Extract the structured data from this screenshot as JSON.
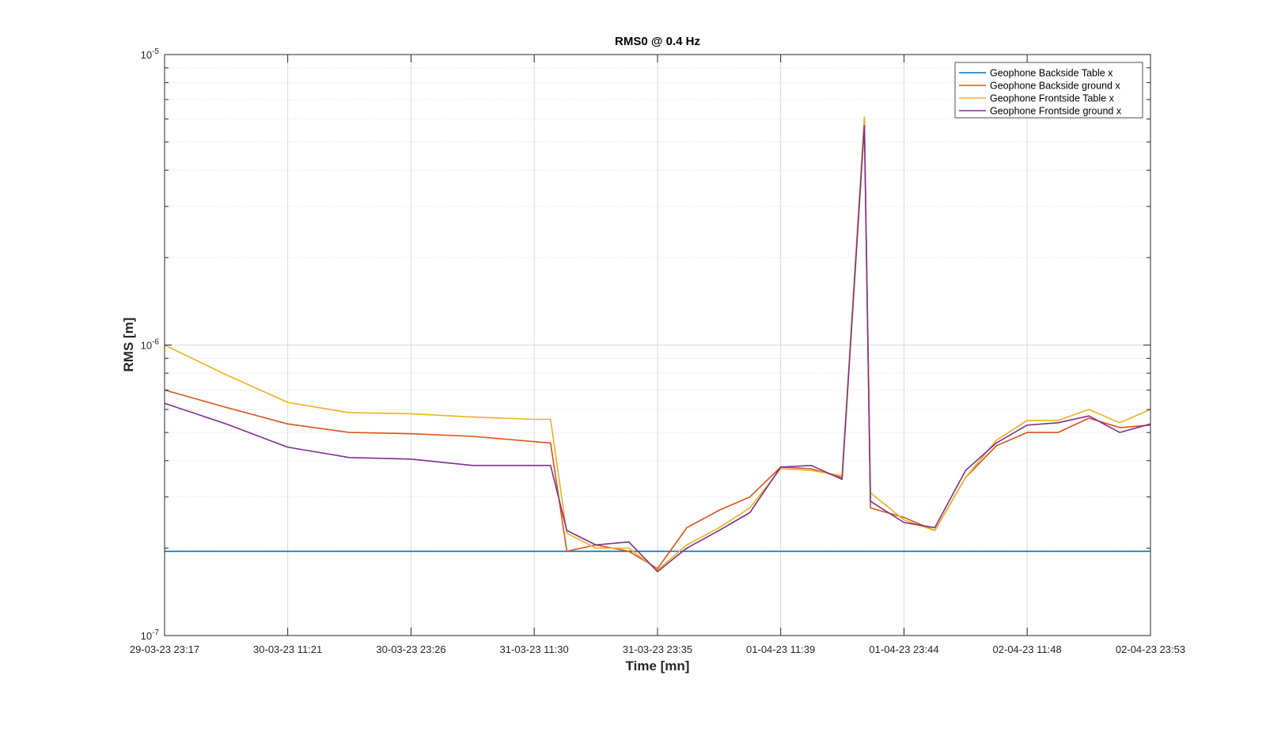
{
  "chart_data": {
    "type": "line",
    "title": "RMS0 @ 0.4 Hz",
    "xlabel": "Time [mn]",
    "ylabel": "RMS [m]",
    "y_scale": "log",
    "ylim": [
      1e-07,
      1e-05
    ],
    "y_ticks": [
      {
        "value": 1e-05,
        "base": "10",
        "exp": "-5"
      },
      {
        "value": 1e-06,
        "base": "10",
        "exp": "-6"
      },
      {
        "value": 1e-07,
        "base": "10",
        "exp": "-7"
      }
    ],
    "x_tick_labels": [
      "29-03-23 23:17",
      "30-03-23 11:21",
      "30-03-23 23:26",
      "31-03-23 11:30",
      "31-03-23 23:35",
      "01-04-23 11:39",
      "01-04-23 23:44",
      "02-04-23 11:48",
      "02-04-23 23:53"
    ],
    "grid": true,
    "legend_position": "top-right",
    "series": [
      {
        "name": "Geophone Backside Table x",
        "color": "#0072BD",
        "x": [
          "29-03-23 23:17",
          "30-03-23 11:21",
          "30-03-23 23:26",
          "31-03-23 11:30",
          "31-03-23 23:35",
          "01-04-23 11:39",
          "01-04-23 23:44",
          "02-04-23 11:48",
          "02-04-23 23:53"
        ],
        "y": [
          1.95e-07,
          1.95e-07,
          1.95e-07,
          1.95e-07,
          1.95e-07,
          1.95e-07,
          1.95e-07,
          1.95e-07,
          1.95e-07
        ]
      },
      {
        "name": "Geophone Backside ground x",
        "color": "#D95319",
        "x": [
          "29-03-23 23:17",
          "30-03-23 05:19",
          "30-03-23 11:21",
          "30-03-23 17:23",
          "30-03-23 23:26",
          "31-03-23 05:28",
          "31-03-23 11:30",
          "31-03-23 13:06",
          "31-03-23 14:42",
          "31-03-23 17:32",
          "31-03-23 20:46",
          "31-03-23 23:35",
          "01-04-23 02:27",
          "01-04-23 05:37",
          "01-04-23 08:38",
          "01-04-23 11:39",
          "01-04-23 14:39",
          "01-04-23 17:40",
          "01-04-23 19:51",
          "01-04-23 20:27",
          "01-04-23 23:44",
          "02-04-23 02:45",
          "02-04-23 05:46",
          "02-04-23 08:47",
          "02-04-23 11:48",
          "02-04-23 14:49",
          "02-04-23 17:51",
          "02-04-23 20:52",
          "02-04-23 23:53"
        ],
        "y": [
          7e-07,
          6.1e-07,
          5.35e-07,
          5e-07,
          4.95e-07,
          4.85e-07,
          4.65e-07,
          4.6e-07,
          1.95e-07,
          2.05e-07,
          1.95e-07,
          1.7e-07,
          2.35e-07,
          2.7e-07,
          3e-07,
          3.8e-07,
          3.75e-07,
          3.5e-07,
          6e-06,
          2.75e-07,
          2.55e-07,
          2.3e-07,
          3.5e-07,
          4.5e-07,
          5e-07,
          5e-07,
          5.6e-07,
          5.2e-07,
          5.3e-07
        ]
      },
      {
        "name": "Geophone Frontside Table x",
        "color": "#EDB120",
        "x": [
          "29-03-23 23:17",
          "30-03-23 05:19",
          "30-03-23 11:21",
          "30-03-23 17:23",
          "30-03-23 23:26",
          "31-03-23 05:28",
          "31-03-23 11:30",
          "31-03-23 13:06",
          "31-03-23 14:42",
          "31-03-23 17:32",
          "31-03-23 20:46",
          "31-03-23 23:35",
          "01-04-23 02:27",
          "01-04-23 05:37",
          "01-04-23 08:38",
          "01-04-23 11:39",
          "01-04-23 14:39",
          "01-04-23 17:40",
          "01-04-23 19:51",
          "01-04-23 20:27",
          "01-04-23 23:44",
          "02-04-23 02:45",
          "02-04-23 05:46",
          "02-04-23 08:47",
          "02-04-23 11:48",
          "02-04-23 14:49",
          "02-04-23 17:51",
          "02-04-23 20:52",
          "02-04-23 23:53"
        ],
        "y": [
          1e-06,
          7.9e-07,
          6.35e-07,
          5.85e-07,
          5.8e-07,
          5.65e-07,
          5.55e-07,
          5.55e-07,
          2.25e-07,
          2e-07,
          2e-07,
          1.68e-07,
          2.05e-07,
          2.35e-07,
          2.75e-07,
          3.75e-07,
          3.7e-07,
          3.55e-07,
          6.1e-06,
          3.1e-07,
          2.5e-07,
          2.3e-07,
          3.5e-07,
          4.7e-07,
          5.5e-07,
          5.5e-07,
          6e-07,
          5.4e-07,
          6e-07
        ]
      },
      {
        "name": "Geophone Frontside ground x",
        "color": "#7E2F8E",
        "x": [
          "29-03-23 23:17",
          "30-03-23 05:19",
          "30-03-23 11:21",
          "30-03-23 17:23",
          "30-03-23 23:26",
          "31-03-23 05:28",
          "31-03-23 11:30",
          "31-03-23 13:06",
          "31-03-23 14:42",
          "31-03-23 17:32",
          "31-03-23 20:46",
          "31-03-23 23:35",
          "01-04-23 02:27",
          "01-04-23 05:37",
          "01-04-23 08:38",
          "01-04-23 11:39",
          "01-04-23 14:39",
          "01-04-23 17:40",
          "01-04-23 19:51",
          "01-04-23 20:27",
          "01-04-23 23:44",
          "02-04-23 02:45",
          "02-04-23 05:46",
          "02-04-23 08:47",
          "02-04-23 11:48",
          "02-04-23 14:49",
          "02-04-23 17:51",
          "02-04-23 20:52",
          "02-04-23 23:53"
        ],
        "y": [
          6.3e-07,
          5.35e-07,
          4.45e-07,
          4.1e-07,
          4.05e-07,
          3.85e-07,
          3.85e-07,
          3.85e-07,
          2.3e-07,
          2.05e-07,
          2.1e-07,
          1.66e-07,
          2e-07,
          2.3e-07,
          2.65e-07,
          3.8e-07,
          3.85e-07,
          3.45e-07,
          5.7e-06,
          2.9e-07,
          2.45e-07,
          2.35e-07,
          3.7e-07,
          4.6e-07,
          5.3e-07,
          5.4e-07,
          5.7e-07,
          5e-07,
          5.35e-07
        ]
      }
    ]
  }
}
